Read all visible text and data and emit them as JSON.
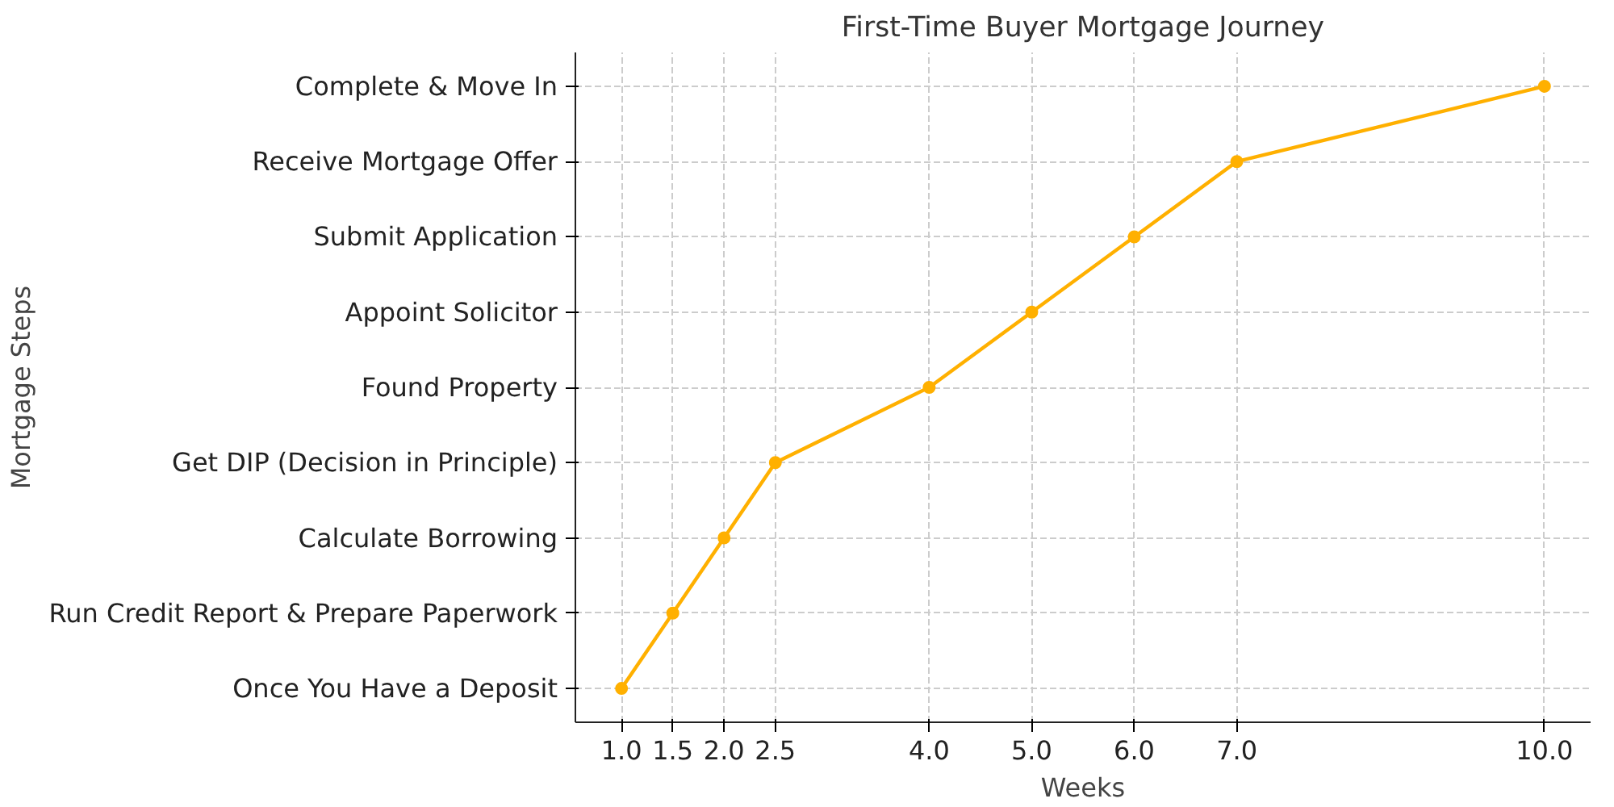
{
  "chart_data": {
    "type": "line",
    "title": "First-Time Buyer Mortgage Journey",
    "xlabel": "Weeks",
    "ylabel": "Mortgage Steps",
    "orientation": "horizontal",
    "categories": [
      "Complete & Move In",
      "Receive Mortgage Offer",
      "Submit Application",
      "Appoint Solicitor",
      "Found Property",
      "Get DIP (Decision in Principle)",
      "Calculate Borrowing",
      "Run Credit Report & Prepare Paperwork",
      "Once You Have a Deposit"
    ],
    "series": [
      {
        "color": "#ffb000",
        "values": [
          10,
          7,
          6,
          5,
          4,
          2.5,
          2,
          1.5,
          1
        ]
      }
    ],
    "xlim": [
      0.55,
      10.45
    ],
    "xticks": [
      {
        "value": 1,
        "label": "1.0"
      },
      {
        "value": 1.5,
        "label": "1.5"
      },
      {
        "value": 2,
        "label": "2.0"
      },
      {
        "value": 2.5,
        "label": "2.5"
      },
      {
        "value": 4,
        "label": "4.0"
      },
      {
        "value": 5,
        "label": "5.0"
      },
      {
        "value": 6,
        "label": "6.0"
      },
      {
        "value": 7,
        "label": "7.0"
      },
      {
        "value": 10,
        "label": "10.0"
      }
    ],
    "grid": true,
    "marker": "circle",
    "line_style": "solid"
  }
}
